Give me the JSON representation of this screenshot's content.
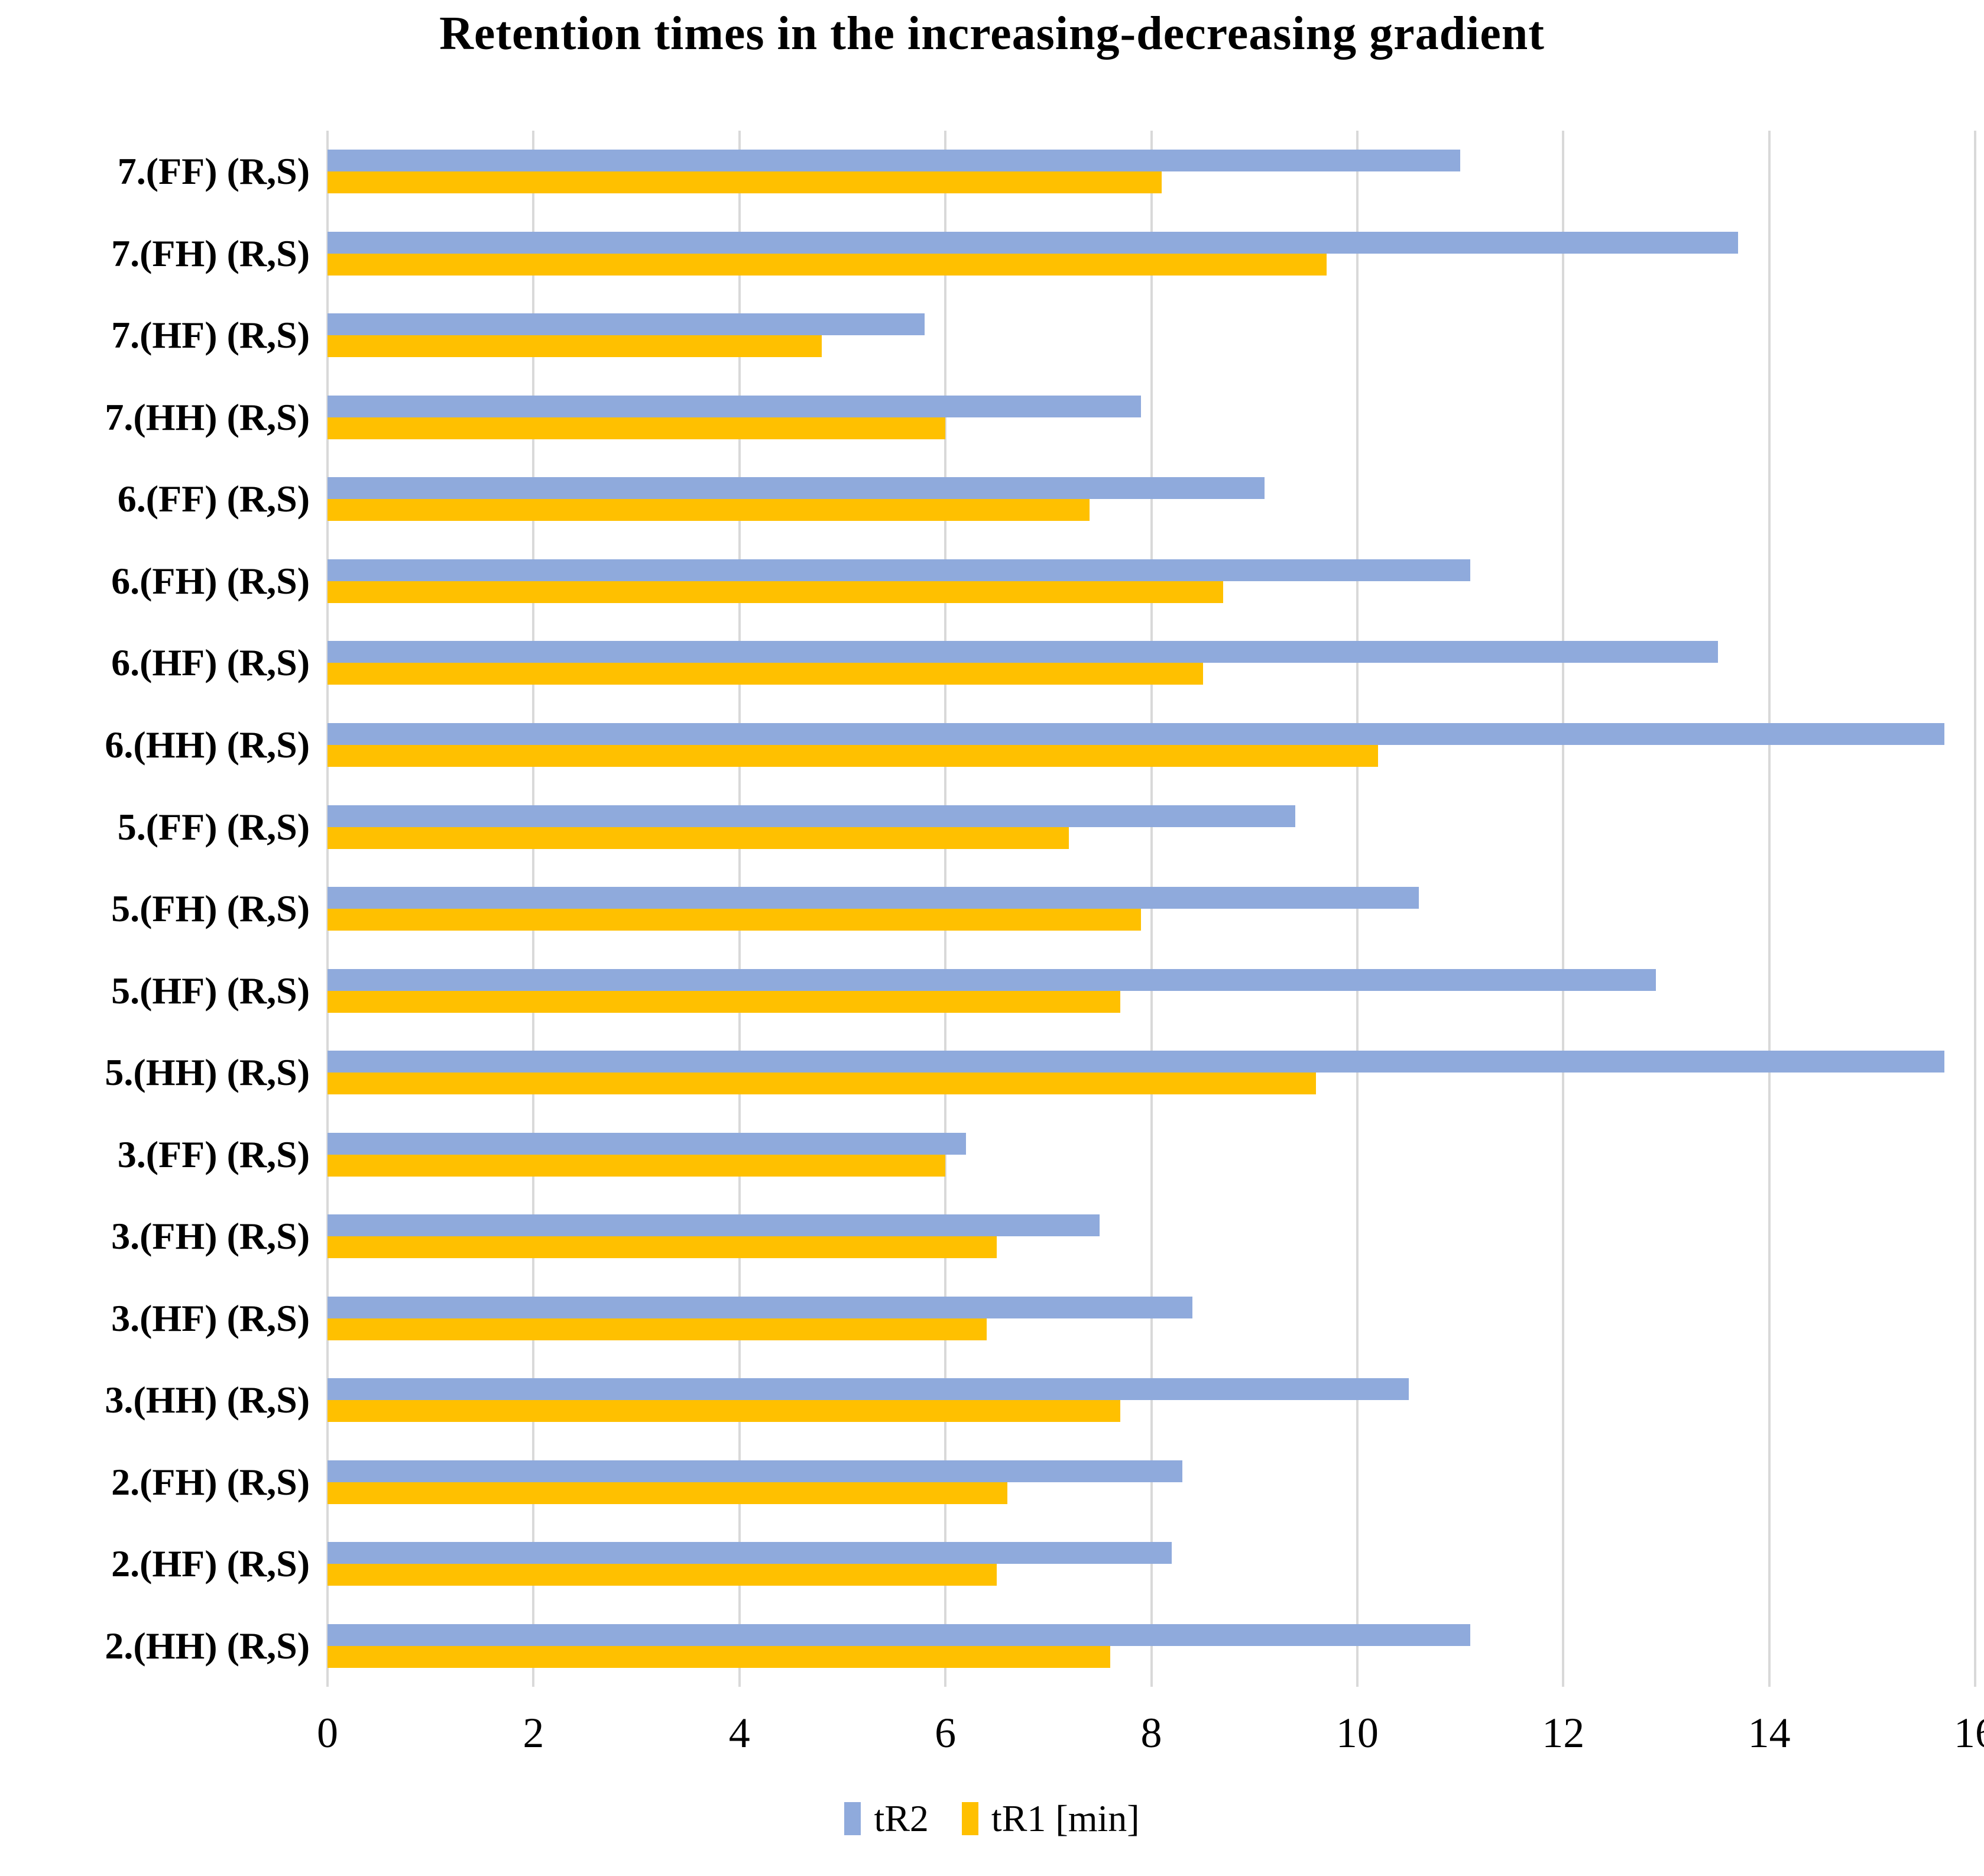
{
  "chart_data": {
    "type": "bar",
    "orientation": "horizontal",
    "title": "Retention times in the increasing-decreasing gradient",
    "categories": [
      "7.(FF) (R,S)",
      "7.(FH) (R,S)",
      "7.(HF) (R,S)",
      "7.(HH) (R,S)",
      "6.(FF) (R,S)",
      "6.(FH) (R,S)",
      "6.(HF) (R,S)",
      "6.(HH) (R,S)",
      "5.(FF) (R,S)",
      "5.(FH) (R,S)",
      "5.(HF) (R,S)",
      "5.(HH) (R,S)",
      "3.(FF) (R,S)",
      "3.(FH) (R,S)",
      "3.(HF) (R,S)",
      "3.(HH) (R,S)",
      "2.(FH) (R,S)",
      "2.(HF) (R,S)",
      "2.(HH) (R,S)"
    ],
    "series": [
      {
        "name": "tR2",
        "color": "#8FAADC",
        "values": [
          11.0,
          13.7,
          5.8,
          7.9,
          9.1,
          11.1,
          13.5,
          15.7,
          9.4,
          10.6,
          12.9,
          15.7,
          6.2,
          7.5,
          8.4,
          10.5,
          8.3,
          8.2,
          11.1
        ]
      },
      {
        "name": "tR1 [min]",
        "color": "#FFC000",
        "values": [
          8.1,
          9.7,
          4.8,
          6.0,
          7.4,
          8.7,
          8.5,
          10.2,
          7.2,
          7.9,
          7.7,
          9.6,
          6.0,
          6.5,
          6.4,
          7.7,
          6.6,
          6.5,
          7.6
        ]
      }
    ],
    "xlabel": "",
    "ylabel": "",
    "xlim": [
      0,
      16
    ],
    "xticks": [
      0,
      2,
      4,
      6,
      8,
      10,
      12,
      14,
      16
    ],
    "grid": true,
    "gridline_color": "#D9D9D9",
    "text_color": "#000000",
    "background_color": "#FFFFFF",
    "legend_position": "bottom"
  }
}
